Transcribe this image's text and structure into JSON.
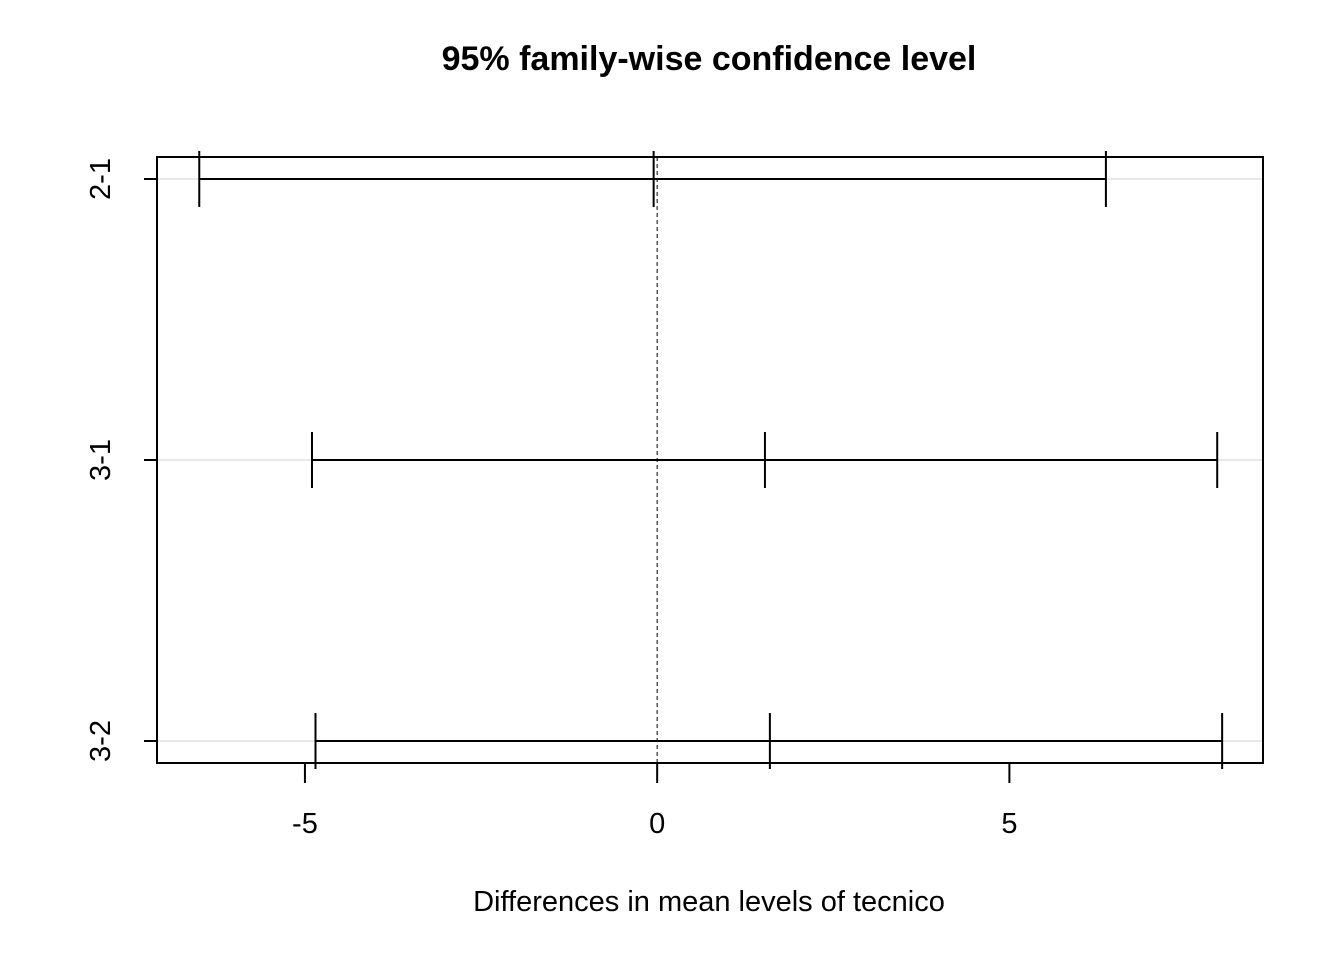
{
  "chart_data": {
    "type": "interval",
    "title": "95% family-wise confidence level",
    "xlabel": "Differences in mean levels of tecnico",
    "ylabel": "",
    "xlim": [
      -7.1,
      8.6
    ],
    "xticks": [
      -5,
      0,
      5
    ],
    "xtick_labels": [
      "-5",
      "0",
      "5"
    ],
    "reference_line": 0,
    "comparisons": [
      {
        "label": "2-1",
        "lwr": -6.5,
        "diff": -0.05,
        "upr": 6.37
      },
      {
        "label": "3-1",
        "lwr": -4.9,
        "diff": 1.53,
        "upr": 7.95
      },
      {
        "label": "3-2",
        "lwr": -4.85,
        "diff": 1.6,
        "upr": 8.02
      }
    ]
  }
}
